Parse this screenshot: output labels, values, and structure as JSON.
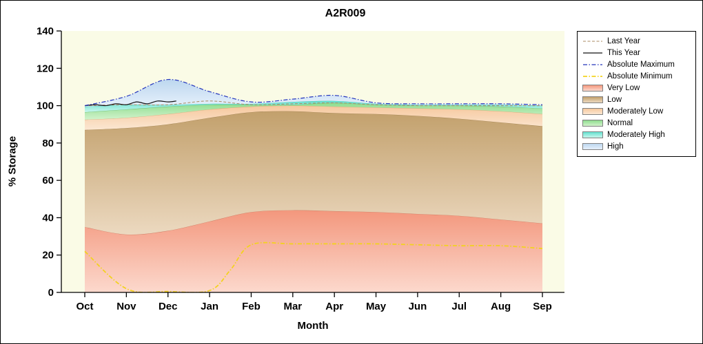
{
  "window": {
    "background": "#ffffff"
  },
  "chart_data": {
    "type": "area",
    "title": "A2R009",
    "xlabel": "Month",
    "ylabel": "% Storage",
    "ylim": [
      0,
      140
    ],
    "yticks": [
      0,
      20,
      40,
      60,
      80,
      100,
      120,
      140
    ],
    "categories": [
      "Oct",
      "Nov",
      "Dec",
      "Jan",
      "Feb",
      "Mar",
      "Apr",
      "May",
      "Jun",
      "Jul",
      "Aug",
      "Sep"
    ],
    "plot_bg": "#fafbe6",
    "bands": [
      {
        "key": "very_low",
        "name": "Very Low",
        "top": "#f3977d",
        "bottom": "#fcd9cd",
        "edge": "#cf7f66",
        "values": [
          35,
          31,
          33,
          38,
          43,
          44,
          43.5,
          43,
          42,
          41,
          39,
          37
        ]
      },
      {
        "key": "low",
        "name": "Low",
        "top": "#c2a06c",
        "bottom": "#ecd9c0",
        "edge": "#9f8050",
        "values": [
          87,
          88,
          90,
          93.5,
          96.5,
          97,
          96,
          95.5,
          94.5,
          93,
          91,
          89
        ]
      },
      {
        "key": "mod_low",
        "name": "Moderately Low",
        "top": "#f6c89e",
        "bottom": "#fbe7d2",
        "edge": "#d9a876",
        "values": [
          92.5,
          93.5,
          95.5,
          98,
          99.5,
          100,
          99.5,
          99,
          98.5,
          98,
          97,
          95.5
        ]
      },
      {
        "key": "normal",
        "name": "Normal",
        "top": "#8edc8e",
        "bottom": "#d2f3cc",
        "edge": "#6dbb6d",
        "values": [
          96.5,
          98,
          99.5,
          100.5,
          100.5,
          100.5,
          101.5,
          100.5,
          100,
          100,
          99.5,
          98.5
        ]
      },
      {
        "key": "mod_high",
        "name": "Moderately High",
        "top": "#63e0cf",
        "bottom": "#c9f6ec",
        "edge": "#45c4b2",
        "values": [
          99.5,
          100.5,
          100.5,
          101,
          101,
          102,
          102.5,
          101,
          100.5,
          100.5,
          100.5,
          100
        ]
      },
      {
        "key": "high",
        "name": "High",
        "top": "#bdd7ef",
        "bottom": "#e6f0fb",
        "edge": null,
        "values": [
          100,
          105,
          114,
          107.5,
          102,
          103.5,
          105.5,
          101.5,
          101,
          101,
          101,
          100.5
        ]
      }
    ],
    "lines": [
      {
        "key": "last_year",
        "name": "Last Year",
        "color": "#a9członk8a62",
        "width": 1,
        "dash": "4 2.5",
        "values": [
          100,
          100.5,
          100.5,
          102.5,
          100.5,
          101,
          101.5,
          100.5,
          100,
          100,
          100,
          100
        ]
      },
      {
        "key": "this_year",
        "name": "This Year",
        "color": "#111111",
        "width": 1.2,
        "dash": "",
        "x": [
          0,
          0.25,
          0.5,
          0.75,
          1,
          1.25,
          1.5,
          1.75,
          2,
          2.2
        ],
        "values": [
          100,
          100.5,
          100,
          101,
          100.5,
          102,
          101,
          102.5,
          102,
          102.5
        ]
      },
      {
        "key": "abs_max",
        "name": "Absolute Maximum",
        "color": "#2233bb",
        "width": 1.2,
        "dash": "6 2.5 1.5 2.5",
        "values": [
          100,
          105,
          114,
          107.5,
          102,
          103.5,
          105.5,
          101.5,
          101,
          101,
          101,
          100.5
        ]
      },
      {
        "key": "abs_min",
        "name": "Absolute Minimum",
        "color": "#f2d21f",
        "width": 1.8,
        "dash": "6 2.5 1.5 2.5",
        "x": [
          0,
          1,
          2,
          3,
          3.5,
          4,
          5,
          6,
          7,
          8,
          9,
          10,
          11
        ],
        "values": [
          22,
          2,
          0.5,
          1,
          12,
          25.5,
          26,
          26,
          26,
          25.5,
          25,
          25,
          23.5
        ]
      }
    ],
    "legend": [
      "Last Year",
      "This Year",
      "Absolute Maximum",
      "Absolute Minimum",
      "Very Low",
      "Low",
      "Moderately Low",
      "Normal",
      "Moderately High",
      "High"
    ]
  }
}
